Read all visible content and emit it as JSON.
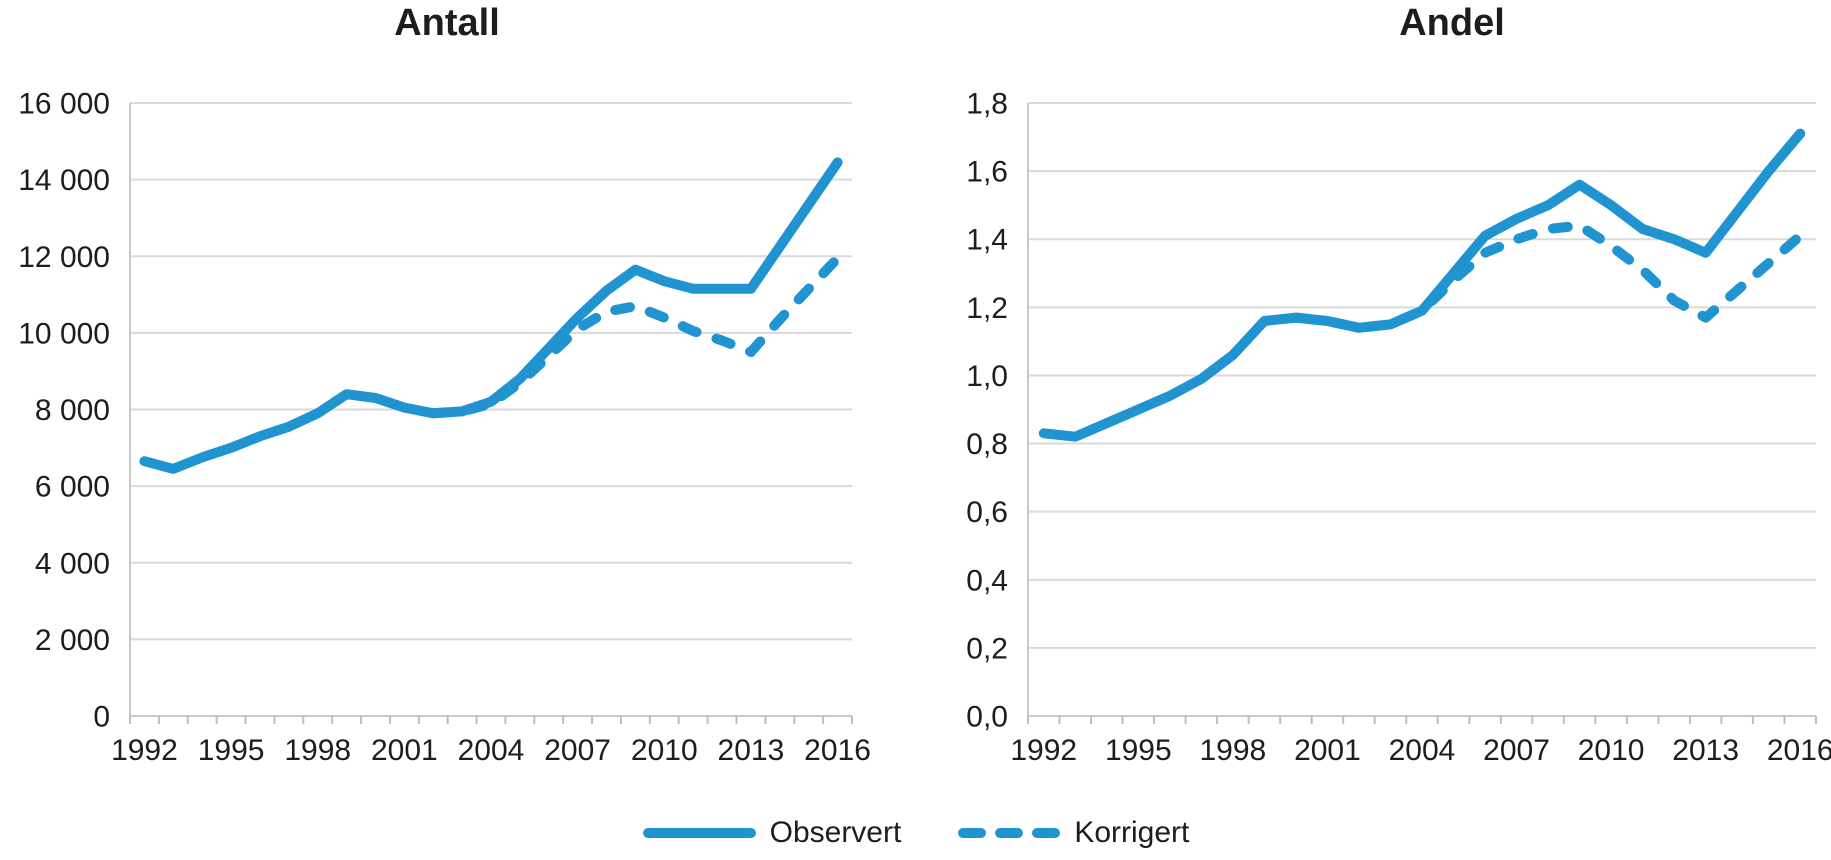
{
  "figure": {
    "background": "#ffffff"
  },
  "colors": {
    "line": "#2093d1",
    "gridline": "#dadada",
    "axis": "#c9c9c9",
    "tick": "#bdbdbd",
    "text": "#1d1d1b"
  },
  "legend": {
    "items": [
      {
        "label": "Observert",
        "line_style": "solid"
      },
      {
        "label": "Korrigert",
        "line_style": "dashed"
      }
    ]
  },
  "chart_data": [
    {
      "type": "line",
      "title": "Antall",
      "x_start": 1992,
      "x_end": 2016,
      "xtick_labels": [
        "1992",
        "1995",
        "1998",
        "2001",
        "2004",
        "2007",
        "2010",
        "2013",
        "2016"
      ],
      "ylim": [
        0,
        16000
      ],
      "ytick_values": [
        0,
        2000,
        4000,
        6000,
        8000,
        10000,
        12000,
        14000,
        16000
      ],
      "ytick_labels": [
        "0",
        "2 000",
        "4 000",
        "6 000",
        "8 000",
        "10 000",
        "12 000",
        "14 000",
        "16 000"
      ],
      "grid": true,
      "legend_position": "bottom",
      "series": [
        {
          "name": "Observert",
          "line_style": "solid",
          "start_year": 1992,
          "values": [
            6650,
            6450,
            6750,
            7000,
            7300,
            7550,
            7900,
            8400,
            8300,
            8050,
            7900,
            7950,
            8200,
            8800,
            9600,
            10400,
            11100,
            11650,
            11350,
            11150,
            11150,
            11150,
            12250,
            13350,
            14450
          ]
        },
        {
          "name": "Korrigert",
          "line_style": "dashed",
          "start_year": 2002,
          "values": [
            7900,
            7950,
            8150,
            8700,
            9400,
            10100,
            10550,
            10700,
            10400,
            10050,
            9800,
            9500,
            10350,
            11150,
            11950
          ]
        }
      ]
    },
    {
      "type": "line",
      "title": "Andel",
      "x_start": 1992,
      "x_end": 2016,
      "xtick_labels": [
        "1992",
        "1995",
        "1998",
        "2001",
        "2004",
        "2007",
        "2010",
        "2013",
        "2016"
      ],
      "ylim": [
        0,
        1.8
      ],
      "ytick_values": [
        0,
        0.2,
        0.4,
        0.6,
        0.8,
        1.0,
        1.2,
        1.4,
        1.6,
        1.8
      ],
      "ytick_labels": [
        "0,0",
        "0,2",
        "0,4",
        "0,6",
        "0,8",
        "1,0",
        "1,2",
        "1,4",
        "1,6",
        "1,8"
      ],
      "grid": true,
      "legend_position": "bottom",
      "series": [
        {
          "name": "Observert",
          "line_style": "solid",
          "start_year": 1992,
          "values": [
            0.83,
            0.82,
            0.86,
            0.9,
            0.94,
            0.99,
            1.06,
            1.16,
            1.17,
            1.16,
            1.14,
            1.15,
            1.19,
            1.3,
            1.41,
            1.46,
            1.5,
            1.56,
            1.5,
            1.43,
            1.4,
            1.36,
            1.48,
            1.6,
            1.71
          ]
        },
        {
          "name": "Korrigert",
          "line_style": "dashed",
          "start_year": 2000,
          "values": [
            1.17,
            1.16,
            1.14,
            1.15,
            1.19,
            1.28,
            1.36,
            1.4,
            1.43,
            1.44,
            1.38,
            1.31,
            1.22,
            1.17,
            1.25,
            1.33,
            1.41
          ]
        }
      ]
    }
  ]
}
